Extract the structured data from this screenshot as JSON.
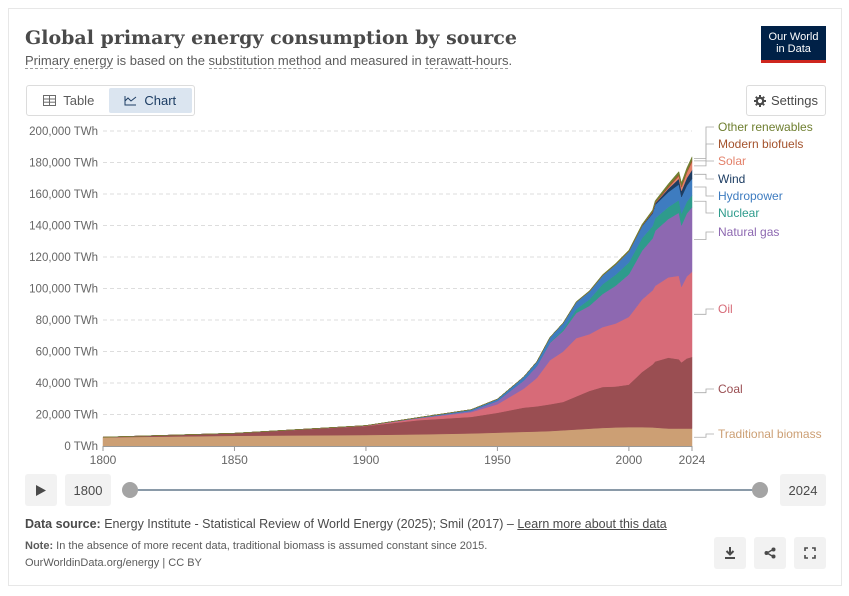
{
  "header": {
    "title": "Global primary energy consumption by source",
    "subtitle_parts": [
      "Primary energy",
      " is based on the ",
      "substitution method",
      " and measured in ",
      "terawatt-hours",
      "."
    ],
    "logo_line1": "Our World",
    "logo_line2": "in Data"
  },
  "tabs": {
    "table_label": "Table",
    "chart_label": "Chart",
    "active": "Chart"
  },
  "settings": {
    "label": "Settings"
  },
  "timeline": {
    "start_year": "1800",
    "end_year": "2024",
    "start_value": 1800,
    "end_value": 2024
  },
  "footer": {
    "source_label": "Data source:",
    "source_text": " Energy Institute - Statistical Review of World Energy (2025); Smil (2017) – ",
    "source_link": "Learn more about this data",
    "note_label": "Note:",
    "note_text": " In the absence of more recent data, traditional biomass is assumed constant since 2015.",
    "credit": "OurWorldinData.org/energy | CC BY"
  },
  "icons": {
    "table": "table-icon",
    "chart": "chart-icon",
    "settings": "gear-icon",
    "play": "play-icon",
    "download": "download-icon",
    "share": "share-icon",
    "fullscreen": "fullscreen-icon"
  },
  "chart_data": {
    "type": "area",
    "stacked": true,
    "title": "Global primary energy consumption by source",
    "ylabel": "",
    "xlabel": "",
    "unit": "TWh",
    "xlim": [
      1800,
      2024
    ],
    "ylim": [
      0,
      200000
    ],
    "x_ticks": [
      1800,
      1850,
      1900,
      1950,
      2000,
      2024
    ],
    "y_ticks": [
      0,
      20000,
      40000,
      60000,
      80000,
      100000,
      120000,
      140000,
      160000,
      180000,
      200000
    ],
    "y_tick_labels": [
      "0 TWh",
      "20,000 TWh",
      "40,000 TWh",
      "60,000 TWh",
      "80,000 TWh",
      "100,000 TWh",
      "120,000 TWh",
      "140,000 TWh",
      "160,000 TWh",
      "180,000 TWh",
      "200,000 TWh"
    ],
    "grid": "horizontal dashed",
    "legend": "right, labels at series ends",
    "x": [
      1800,
      1850,
      1900,
      1920,
      1940,
      1950,
      1960,
      1965,
      1970,
      1975,
      1980,
      1985,
      1990,
      1995,
      2000,
      2005,
      2009,
      2010,
      2015,
      2019,
      2020,
      2022,
      2024
    ],
    "series": [
      {
        "name": "Traditional biomass",
        "color": "#cc9f74",
        "values": [
          5500,
          6500,
          7000,
          7400,
          8000,
          8500,
          9000,
          9200,
          9500,
          10000,
          10500,
          11000,
          11500,
          11800,
          12000,
          12000,
          11800,
          11700,
          11100,
          11100,
          11100,
          11100,
          11100
        ]
      },
      {
        "name": "Coal",
        "color": "#9a4e52",
        "values": [
          100,
          1600,
          5700,
          9000,
          10500,
          12600,
          15400,
          16000,
          17000,
          18000,
          21000,
          24000,
          26000,
          26000,
          27000,
          35000,
          40000,
          42000,
          45000,
          44000,
          42000,
          44500,
          45500
        ]
      },
      {
        "name": "Oil",
        "color": "#d76b78",
        "values": [
          0,
          0,
          200,
          1200,
          3000,
          5400,
          12000,
          18000,
          28000,
          32000,
          37000,
          36000,
          38000,
          40000,
          43000,
          46000,
          47000,
          48000,
          51000,
          53000,
          48000,
          52000,
          54000
        ]
      },
      {
        "name": "Natural gas",
        "color": "#8d68b1",
        "values": [
          0,
          0,
          60,
          300,
          800,
          2100,
          5200,
          7500,
          11000,
          13000,
          16000,
          18000,
          21000,
          24000,
          27000,
          31000,
          33000,
          35000,
          37000,
          40000,
          39000,
          40000,
          41000
        ]
      },
      {
        "name": "Nuclear",
        "color": "#2e9b8c",
        "values": [
          0,
          0,
          0,
          0,
          0,
          0,
          0,
          100,
          200,
          1100,
          2400,
          4100,
          6200,
          7000,
          7500,
          8000,
          7800,
          7900,
          7600,
          8000,
          7600,
          7400,
          7600
        ]
      },
      {
        "name": "Hydropower",
        "color": "#3e7cc0",
        "values": [
          0,
          0,
          20,
          200,
          800,
          1200,
          2300,
          2800,
          3300,
          4000,
          4500,
          5000,
          5500,
          6400,
          7000,
          7500,
          8000,
          8500,
          9500,
          10000,
          10400,
          10300,
          10500
        ]
      },
      {
        "name": "Wind",
        "color": "#1d3d63",
        "values": [
          0,
          0,
          0,
          0,
          0,
          0,
          0,
          0,
          0,
          0,
          0,
          0,
          10,
          20,
          90,
          280,
          720,
          900,
          2200,
          3600,
          4000,
          4800,
          5600
        ]
      },
      {
        "name": "Solar",
        "color": "#e3816a",
        "values": [
          0,
          0,
          0,
          0,
          0,
          0,
          0,
          0,
          0,
          0,
          0,
          0,
          0,
          0,
          3,
          10,
          50,
          90,
          660,
          1800,
          2200,
          3300,
          5100
        ]
      },
      {
        "name": "Modern biofuels",
        "color": "#a4532d",
        "values": [
          0,
          0,
          0,
          0,
          0,
          0,
          0,
          0,
          0,
          0,
          50,
          100,
          100,
          100,
          130,
          200,
          580,
          650,
          980,
          1050,
          1000,
          1150,
          1250
        ]
      },
      {
        "name": "Other renewables",
        "color": "#6f7f30",
        "values": [
          0,
          0,
          0,
          0,
          0,
          0,
          40,
          50,
          90,
          150,
          250,
          350,
          480,
          600,
          630,
          750,
          900,
          1000,
          1400,
          1700,
          1800,
          1850,
          1950
        ]
      }
    ]
  }
}
